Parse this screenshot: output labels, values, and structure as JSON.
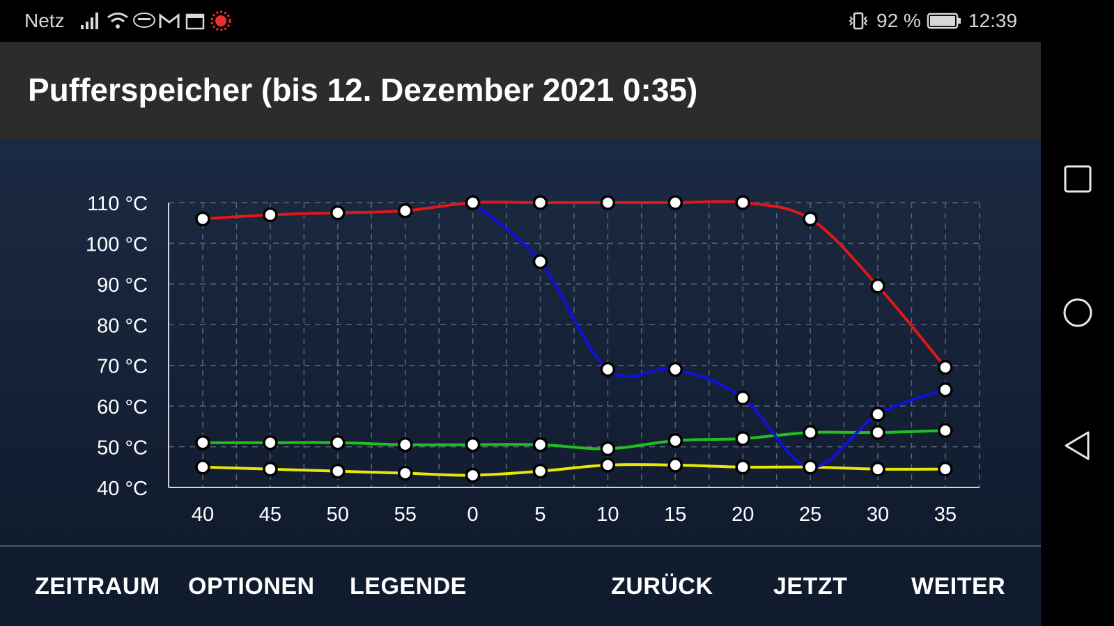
{
  "status_bar": {
    "carrier": "Netz",
    "battery_percent": "92 %",
    "time": "12:39",
    "icons": [
      "signal-icon",
      "wifi-icon",
      "ebay-icon",
      "gmail-icon",
      "calendar-icon",
      "sun-app-icon",
      "vibrate-icon",
      "battery-icon"
    ]
  },
  "header": {
    "title": "Pufferspeicher (bis 12. Dezember 2021 0:35)"
  },
  "chart_data": {
    "type": "line",
    "x": [
      "40",
      "45",
      "50",
      "55",
      "0",
      "5",
      "10",
      "15",
      "20",
      "25",
      "30",
      "35"
    ],
    "ylim": [
      40,
      110
    ],
    "yticks": [
      40,
      50,
      60,
      70,
      80,
      90,
      100,
      110
    ],
    "ytick_labels": [
      "40 °C",
      "50 °C",
      "60 °C",
      "70 °C",
      "80 °C",
      "90 °C",
      "100 °C",
      "110 °C"
    ],
    "grid": true,
    "series": [
      {
        "color": "#e01818",
        "values": [
          106,
          107,
          107.5,
          108,
          110,
          110,
          110,
          110,
          110,
          106,
          89.5,
          69.5
        ]
      },
      {
        "color": "#1010e0",
        "values": [
          null,
          null,
          null,
          null,
          110,
          95.5,
          69,
          69,
          62,
          45,
          58,
          64
        ]
      },
      {
        "color": "#20c020",
        "values": [
          51,
          51,
          51,
          50.5,
          50.5,
          50.5,
          49.5,
          51.5,
          52,
          53.5,
          53.5,
          54
        ]
      },
      {
        "color": "#e8e800",
        "values": [
          45,
          44.5,
          44,
          43.5,
          43,
          44,
          45.5,
          45.5,
          45,
          45,
          44.5,
          44.5
        ]
      }
    ]
  },
  "bottom_bar": {
    "zeitraum": "ZEITRAUM",
    "optionen": "OPTIONEN",
    "legende": "LEGENDE",
    "zurueck": "ZURÜCK",
    "jetzt": "JETZT",
    "weiter": "WEITER"
  },
  "nav": {
    "icons": [
      "recents-icon",
      "home-icon",
      "back-icon"
    ]
  }
}
